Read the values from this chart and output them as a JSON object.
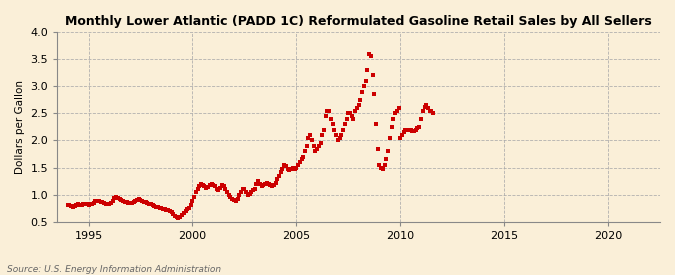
{
  "title": "Monthly Lower Atlantic (PADD 1C) Reformulated Gasoline Retail Sales by All Sellers",
  "ylabel": "Dollars per Gallon",
  "source": "Source: U.S. Energy Information Administration",
  "background_color": "#faefd8",
  "plot_background_color": "#faefd8",
  "marker_color": "#cc0000",
  "xlim": [
    1993.5,
    2022.5
  ],
  "ylim": [
    0.5,
    4.0
  ],
  "yticks": [
    0.5,
    1.0,
    1.5,
    2.0,
    2.5,
    3.0,
    3.5,
    4.0
  ],
  "xticks": [
    1995,
    2000,
    2005,
    2010,
    2015,
    2020
  ],
  "data": [
    [
      1994.0,
      0.8
    ],
    [
      1994.08,
      0.8
    ],
    [
      1994.17,
      0.79
    ],
    [
      1994.25,
      0.78
    ],
    [
      1994.33,
      0.79
    ],
    [
      1994.42,
      0.8
    ],
    [
      1994.5,
      0.82
    ],
    [
      1994.58,
      0.81
    ],
    [
      1994.67,
      0.8
    ],
    [
      1994.75,
      0.82
    ],
    [
      1994.83,
      0.83
    ],
    [
      1994.92,
      0.82
    ],
    [
      1995.0,
      0.8
    ],
    [
      1995.08,
      0.82
    ],
    [
      1995.17,
      0.83
    ],
    [
      1995.25,
      0.85
    ],
    [
      1995.33,
      0.88
    ],
    [
      1995.42,
      0.89
    ],
    [
      1995.5,
      0.88
    ],
    [
      1995.58,
      0.87
    ],
    [
      1995.67,
      0.86
    ],
    [
      1995.75,
      0.84
    ],
    [
      1995.83,
      0.82
    ],
    [
      1995.92,
      0.82
    ],
    [
      1996.0,
      0.82
    ],
    [
      1996.08,
      0.84
    ],
    [
      1996.17,
      0.88
    ],
    [
      1996.25,
      0.93
    ],
    [
      1996.33,
      0.95
    ],
    [
      1996.42,
      0.93
    ],
    [
      1996.5,
      0.92
    ],
    [
      1996.58,
      0.9
    ],
    [
      1996.67,
      0.88
    ],
    [
      1996.75,
      0.87
    ],
    [
      1996.83,
      0.86
    ],
    [
      1996.92,
      0.85
    ],
    [
      1997.0,
      0.84
    ],
    [
      1997.08,
      0.85
    ],
    [
      1997.17,
      0.86
    ],
    [
      1997.25,
      0.88
    ],
    [
      1997.33,
      0.9
    ],
    [
      1997.42,
      0.91
    ],
    [
      1997.5,
      0.9
    ],
    [
      1997.58,
      0.88
    ],
    [
      1997.67,
      0.87
    ],
    [
      1997.75,
      0.86
    ],
    [
      1997.83,
      0.84
    ],
    [
      1997.92,
      0.83
    ],
    [
      1998.0,
      0.82
    ],
    [
      1998.08,
      0.8
    ],
    [
      1998.17,
      0.79
    ],
    [
      1998.25,
      0.78
    ],
    [
      1998.33,
      0.77
    ],
    [
      1998.42,
      0.76
    ],
    [
      1998.5,
      0.75
    ],
    [
      1998.58,
      0.74
    ],
    [
      1998.67,
      0.73
    ],
    [
      1998.75,
      0.72
    ],
    [
      1998.83,
      0.71
    ],
    [
      1998.92,
      0.7
    ],
    [
      1999.0,
      0.68
    ],
    [
      1999.08,
      0.65
    ],
    [
      1999.17,
      0.6
    ],
    [
      1999.25,
      0.58
    ],
    [
      1999.33,
      0.57
    ],
    [
      1999.42,
      0.58
    ],
    [
      1999.5,
      0.62
    ],
    [
      1999.58,
      0.66
    ],
    [
      1999.67,
      0.7
    ],
    [
      1999.75,
      0.73
    ],
    [
      1999.83,
      0.76
    ],
    [
      1999.92,
      0.8
    ],
    [
      2000.0,
      0.88
    ],
    [
      2000.08,
      0.95
    ],
    [
      2000.17,
      1.05
    ],
    [
      2000.25,
      1.1
    ],
    [
      2000.33,
      1.15
    ],
    [
      2000.42,
      1.2
    ],
    [
      2000.5,
      1.18
    ],
    [
      2000.58,
      1.15
    ],
    [
      2000.67,
      1.12
    ],
    [
      2000.75,
      1.14
    ],
    [
      2000.83,
      1.18
    ],
    [
      2000.92,
      1.2
    ],
    [
      2001.0,
      1.18
    ],
    [
      2001.08,
      1.15
    ],
    [
      2001.17,
      1.1
    ],
    [
      2001.25,
      1.08
    ],
    [
      2001.33,
      1.12
    ],
    [
      2001.42,
      1.18
    ],
    [
      2001.5,
      1.15
    ],
    [
      2001.58,
      1.1
    ],
    [
      2001.67,
      1.05
    ],
    [
      2001.75,
      1.0
    ],
    [
      2001.83,
      0.95
    ],
    [
      2001.92,
      0.92
    ],
    [
      2002.0,
      0.9
    ],
    [
      2002.08,
      0.88
    ],
    [
      2002.17,
      0.92
    ],
    [
      2002.25,
      1.0
    ],
    [
      2002.33,
      1.05
    ],
    [
      2002.42,
      1.1
    ],
    [
      2002.5,
      1.1
    ],
    [
      2002.58,
      1.05
    ],
    [
      2002.67,
      1.0
    ],
    [
      2002.75,
      1.02
    ],
    [
      2002.83,
      1.05
    ],
    [
      2002.92,
      1.08
    ],
    [
      2003.0,
      1.1
    ],
    [
      2003.08,
      1.2
    ],
    [
      2003.17,
      1.25
    ],
    [
      2003.25,
      1.2
    ],
    [
      2003.33,
      1.15
    ],
    [
      2003.42,
      1.18
    ],
    [
      2003.5,
      1.2
    ],
    [
      2003.58,
      1.22
    ],
    [
      2003.67,
      1.2
    ],
    [
      2003.75,
      1.18
    ],
    [
      2003.83,
      1.15
    ],
    [
      2003.92,
      1.18
    ],
    [
      2004.0,
      1.22
    ],
    [
      2004.08,
      1.28
    ],
    [
      2004.17,
      1.35
    ],
    [
      2004.25,
      1.42
    ],
    [
      2004.33,
      1.48
    ],
    [
      2004.42,
      1.55
    ],
    [
      2004.5,
      1.52
    ],
    [
      2004.58,
      1.48
    ],
    [
      2004.67,
      1.45
    ],
    [
      2004.75,
      1.48
    ],
    [
      2004.83,
      1.5
    ],
    [
      2004.92,
      1.48
    ],
    [
      2005.0,
      1.5
    ],
    [
      2005.08,
      1.55
    ],
    [
      2005.17,
      1.6
    ],
    [
      2005.25,
      1.65
    ],
    [
      2005.33,
      1.7
    ],
    [
      2005.42,
      1.8
    ],
    [
      2005.5,
      1.9
    ],
    [
      2005.58,
      2.05
    ],
    [
      2005.67,
      2.1
    ],
    [
      2005.75,
      2.0
    ],
    [
      2005.83,
      1.9
    ],
    [
      2005.92,
      1.8
    ],
    [
      2006.0,
      1.85
    ],
    [
      2006.08,
      1.9
    ],
    [
      2006.17,
      1.95
    ],
    [
      2006.25,
      2.1
    ],
    [
      2006.33,
      2.2
    ],
    [
      2006.42,
      2.45
    ],
    [
      2006.5,
      2.55
    ],
    [
      2006.58,
      2.55
    ],
    [
      2006.67,
      2.4
    ],
    [
      2006.75,
      2.3
    ],
    [
      2006.83,
      2.2
    ],
    [
      2006.92,
      2.1
    ],
    [
      2007.0,
      2.0
    ],
    [
      2007.08,
      2.05
    ],
    [
      2007.17,
      2.1
    ],
    [
      2007.25,
      2.2
    ],
    [
      2007.33,
      2.3
    ],
    [
      2007.42,
      2.4
    ],
    [
      2007.5,
      2.5
    ],
    [
      2007.58,
      2.5
    ],
    [
      2007.67,
      2.45
    ],
    [
      2007.75,
      2.4
    ],
    [
      2007.83,
      2.55
    ],
    [
      2007.92,
      2.6
    ],
    [
      2008.0,
      2.65
    ],
    [
      2008.08,
      2.75
    ],
    [
      2008.17,
      2.9
    ],
    [
      2008.25,
      3.0
    ],
    [
      2008.33,
      3.1
    ],
    [
      2008.42,
      3.3
    ],
    [
      2008.5,
      3.6
    ],
    [
      2008.58,
      3.55
    ],
    [
      2008.67,
      3.2
    ],
    [
      2008.75,
      2.85
    ],
    [
      2008.83,
      2.3
    ],
    [
      2008.92,
      1.85
    ],
    [
      2009.0,
      1.55
    ],
    [
      2009.08,
      1.5
    ],
    [
      2009.17,
      1.48
    ],
    [
      2009.25,
      1.55
    ],
    [
      2009.33,
      1.65
    ],
    [
      2009.42,
      1.8
    ],
    [
      2009.5,
      2.05
    ],
    [
      2009.58,
      2.25
    ],
    [
      2009.67,
      2.4
    ],
    [
      2009.75,
      2.5
    ],
    [
      2009.83,
      2.55
    ],
    [
      2009.92,
      2.6
    ],
    [
      2010.0,
      2.05
    ],
    [
      2010.08,
      2.1
    ],
    [
      2010.17,
      2.15
    ],
    [
      2010.25,
      2.2
    ],
    [
      2010.33,
      2.2
    ],
    [
      2010.42,
      2.2
    ],
    [
      2010.5,
      2.2
    ],
    [
      2010.58,
      2.18
    ],
    [
      2010.67,
      2.18
    ],
    [
      2010.75,
      2.2
    ],
    [
      2010.83,
      2.22
    ],
    [
      2010.92,
      2.25
    ],
    [
      2011.0,
      2.4
    ],
    [
      2011.08,
      2.55
    ],
    [
      2011.17,
      2.62
    ],
    [
      2011.25,
      2.65
    ],
    [
      2011.33,
      2.6
    ],
    [
      2011.42,
      2.55
    ],
    [
      2011.5,
      2.55
    ],
    [
      2011.58,
      2.5
    ]
  ]
}
